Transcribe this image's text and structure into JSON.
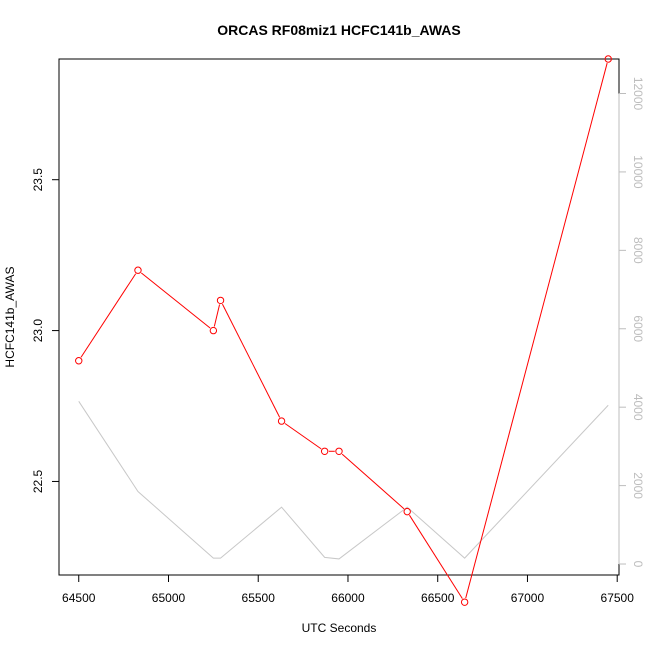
{
  "chart_data": {
    "type": "line",
    "title": "ORCAS RF08miz1 HCFC141b_AWAS",
    "xlabel": "UTC Seconds",
    "ylabel": "HCFC141b_AWAS",
    "xlim": [
      64390,
      67510
    ],
    "ylim": [
      22.19,
      23.9
    ],
    "y2lim": [
      -280,
      12880
    ],
    "x_ticks": [
      64500,
      65000,
      65500,
      66000,
      66500,
      67000,
      67500
    ],
    "y_ticks": [
      22.5,
      23.0,
      23.5
    ],
    "y2_ticks": [
      0,
      2000,
      4000,
      6000,
      8000,
      10000,
      12000
    ],
    "x_tick_labels": [
      "64500",
      "65000",
      "65500",
      "66000",
      "66500",
      "67000",
      "67500"
    ],
    "y_tick_labels": [
      "22.5",
      "23.0",
      "23.5"
    ],
    "y2_tick_labels": [
      "0",
      "2000",
      "4000",
      "6000",
      "8000",
      "10000",
      "12000"
    ],
    "series": [
      {
        "axis": "left",
        "color": "#ff0000",
        "markers": true,
        "x": [
          64500,
          64830,
          65250,
          65290,
          65630,
          65870,
          65950,
          66330,
          66650,
          67450
        ],
        "y": [
          22.9,
          23.2,
          23.0,
          23.1,
          22.7,
          22.6,
          22.6,
          22.4,
          22.1,
          23.9
        ]
      },
      {
        "axis": "right",
        "color": "#c8c8c8",
        "markers": false,
        "x": [
          64500,
          64830,
          65250,
          65290,
          65630,
          65870,
          65950,
          66330,
          66650,
          67450
        ],
        "y": [
          4150,
          1850,
          150,
          150,
          1450,
          170,
          130,
          1450,
          150,
          4050
        ]
      }
    ]
  }
}
